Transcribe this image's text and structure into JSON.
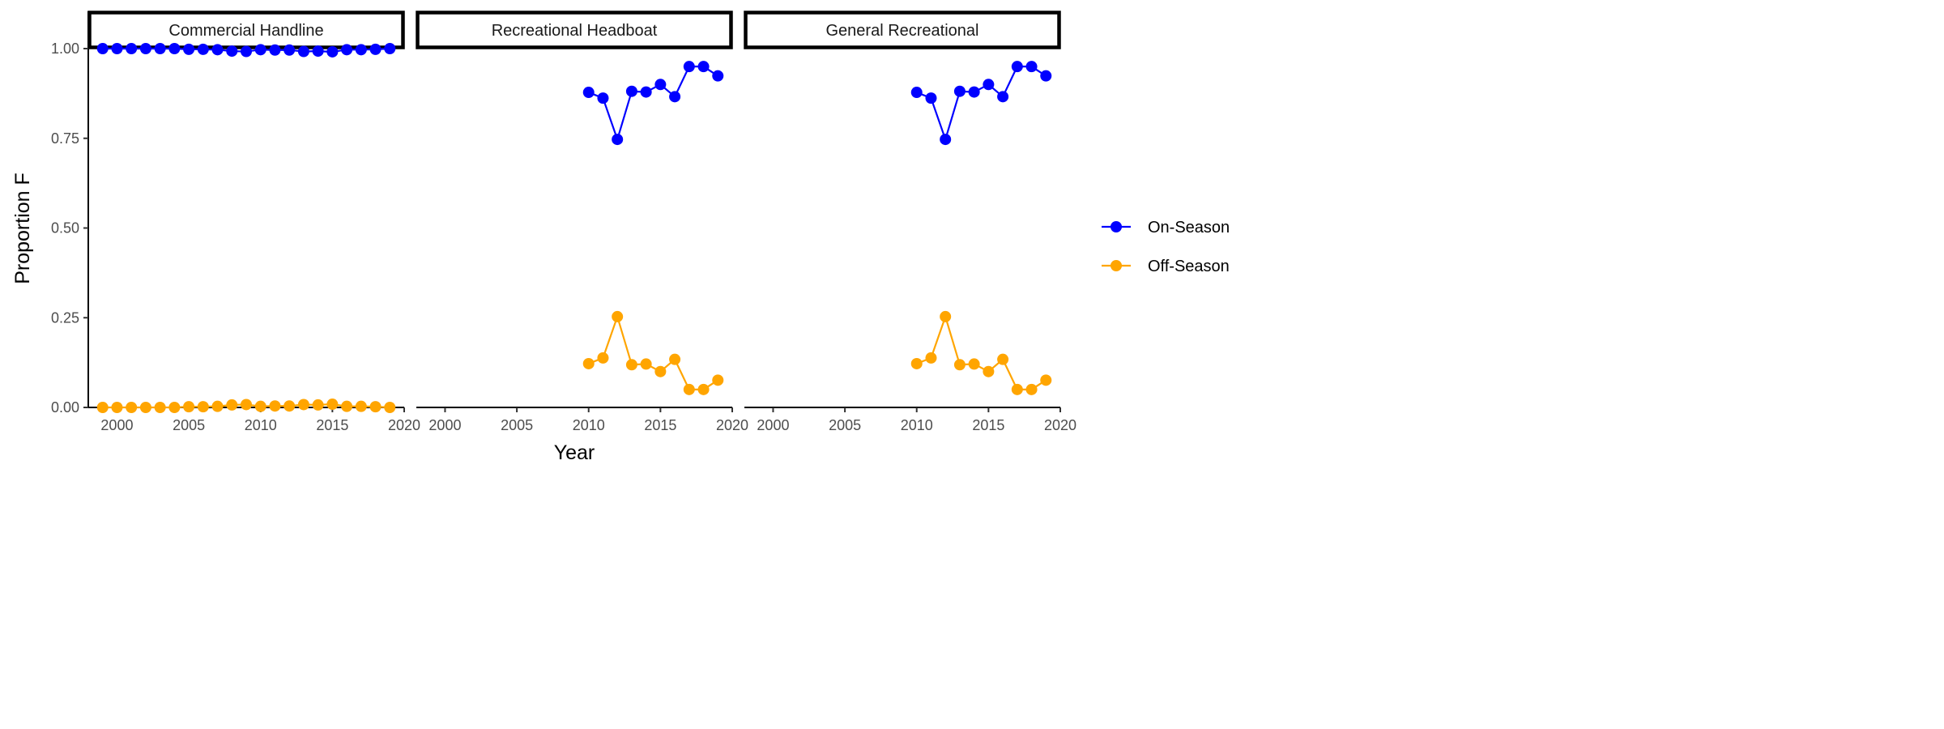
{
  "chart_data": {
    "type": "line",
    "xlabel": "Year",
    "ylabel": "Proportion F",
    "xlim": [
      1998,
      2020
    ],
    "ylim": [
      0,
      1.09
    ],
    "x_ticks": [
      2000,
      2005,
      2010,
      2015,
      2020
    ],
    "x_tick_labels": [
      "2000",
      "2005",
      "2010",
      "2015",
      "2020"
    ],
    "y_ticks": [
      0,
      0.25,
      0.5,
      0.75,
      1.0
    ],
    "y_tick_labels": [
      "0.00",
      "0.25",
      "0.50",
      "0.75",
      "1.00"
    ],
    "grid": false,
    "legend_position": "right",
    "legend": [
      {
        "name": "On-Season",
        "color": "#0000ff"
      },
      {
        "name": "Off-Season",
        "color": "#ffa500"
      }
    ],
    "panels": [
      {
        "title": "Commercial Handline",
        "show_y_axis": true,
        "series": [
          {
            "name": "On-Season",
            "color": "#0000ff",
            "x": [
              1999,
              2000,
              2001,
              2002,
              2003,
              2004,
              2005,
              2006,
              2007,
              2008,
              2009,
              2010,
              2011,
              2012,
              2013,
              2014,
              2015,
              2016,
              2017,
              2018,
              2019
            ],
            "y": [
              1.0,
              1.0,
              1.0,
              1.0,
              1.0,
              1.0,
              0.998,
              0.998,
              0.997,
              0.993,
              0.992,
              0.997,
              0.996,
              0.996,
              0.992,
              0.993,
              0.991,
              0.997,
              0.997,
              0.998,
              1.0
            ]
          },
          {
            "name": "Off-Season",
            "color": "#ffa500",
            "x": [
              1999,
              2000,
              2001,
              2002,
              2003,
              2004,
              2005,
              2006,
              2007,
              2008,
              2009,
              2010,
              2011,
              2012,
              2013,
              2014,
              2015,
              2016,
              2017,
              2018,
              2019
            ],
            "y": [
              0.0,
              0.0,
              0.0,
              0.0,
              0.0,
              0.0,
              0.002,
              0.002,
              0.003,
              0.007,
              0.008,
              0.003,
              0.004,
              0.004,
              0.008,
              0.007,
              0.009,
              0.003,
              0.003,
              0.002,
              0.0
            ]
          }
        ]
      },
      {
        "title": "Recreational Headboat",
        "show_y_axis": false,
        "series": [
          {
            "name": "On-Season",
            "color": "#0000ff",
            "x": [
              2010,
              2011,
              2012,
              2013,
              2014,
              2015,
              2016,
              2017,
              2018,
              2019
            ],
            "y": [
              0.878,
              0.862,
              0.747,
              0.881,
              0.879,
              0.9,
              0.866,
              0.95,
              0.95,
              0.924
            ]
          },
          {
            "name": "Off-Season",
            "color": "#ffa500",
            "x": [
              2010,
              2011,
              2012,
              2013,
              2014,
              2015,
              2016,
              2017,
              2018,
              2019
            ],
            "y": [
              0.122,
              0.138,
              0.253,
              0.119,
              0.121,
              0.1,
              0.134,
              0.05,
              0.05,
              0.076
            ]
          }
        ]
      },
      {
        "title": "General Recreational",
        "show_y_axis": false,
        "series": [
          {
            "name": "On-Season",
            "color": "#0000ff",
            "x": [
              2010,
              2011,
              2012,
              2013,
              2014,
              2015,
              2016,
              2017,
              2018,
              2019
            ],
            "y": [
              0.878,
              0.862,
              0.747,
              0.881,
              0.879,
              0.9,
              0.866,
              0.95,
              0.95,
              0.924
            ]
          },
          {
            "name": "Off-Season",
            "color": "#ffa500",
            "x": [
              2010,
              2011,
              2012,
              2013,
              2014,
              2015,
              2016,
              2017,
              2018,
              2019
            ],
            "y": [
              0.122,
              0.138,
              0.253,
              0.119,
              0.121,
              0.1,
              0.134,
              0.05,
              0.05,
              0.076
            ]
          }
        ]
      }
    ]
  }
}
